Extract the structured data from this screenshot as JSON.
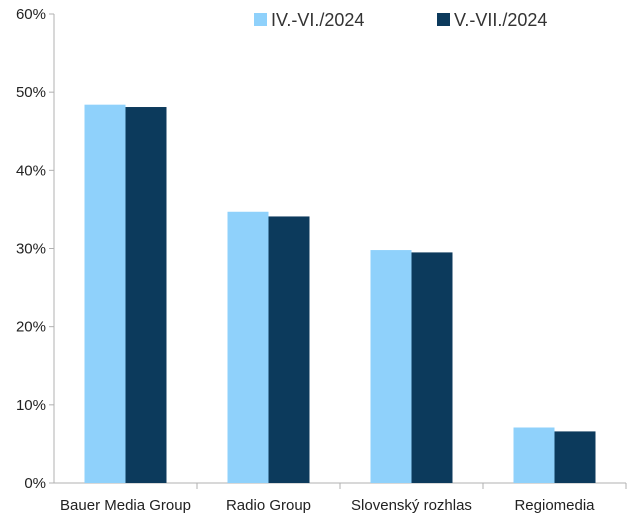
{
  "chart_data": {
    "type": "bar",
    "categories": [
      "Bauer Media Group",
      "Radio Group",
      "Slovenský rozhlas",
      "Regiomedia"
    ],
    "series": [
      {
        "name": "IV.-VI./2024",
        "color": "#8fd1fb",
        "values": [
          48.4,
          34.7,
          29.8,
          7.1
        ]
      },
      {
        "name": "V.-VII./2024",
        "color": "#0c3a5c",
        "values": [
          48.1,
          34.1,
          29.5,
          6.6
        ]
      }
    ],
    "y_ticks": [
      "0%",
      "10%",
      "20%",
      "30%",
      "40%",
      "50%",
      "60%"
    ],
    "ylim": [
      0,
      60
    ],
    "grid": false,
    "legend_position": "top-right",
    "axis_color": "#b0b0b0"
  }
}
